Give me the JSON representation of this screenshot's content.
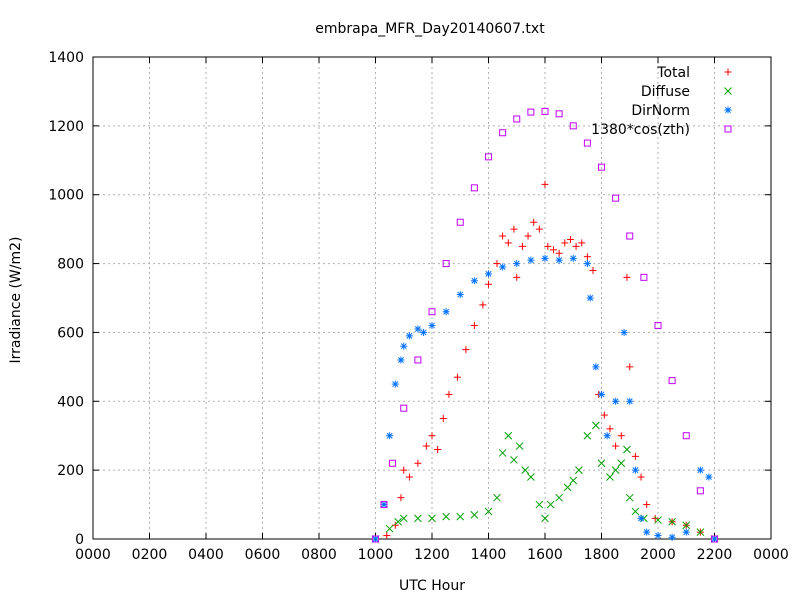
{
  "chart_data": {
    "type": "scatter",
    "title": "embrapa_MFR_Day20140607.txt",
    "xlabel": "UTC Hour",
    "ylabel": "Irradiance (W/m2)",
    "xlim": [
      0,
      2400
    ],
    "ylim": [
      0,
      1400
    ],
    "x_ticks": [
      "0000",
      "0200",
      "0400",
      "0600",
      "0800",
      "1000",
      "1200",
      "1400",
      "1600",
      "1800",
      "2000",
      "2200",
      "0000"
    ],
    "y_ticks": [
      "0",
      "200",
      "400",
      "600",
      "800",
      "1000",
      "1200",
      "1400"
    ],
    "grid": true,
    "legend_position": "top-right",
    "series": [
      {
        "name": "Total",
        "marker": "+",
        "color": "#ff0000",
        "points": [
          [
            1000,
            0
          ],
          [
            1040,
            10
          ],
          [
            1070,
            40
          ],
          [
            1090,
            120
          ],
          [
            1100,
            200
          ],
          [
            1120,
            180
          ],
          [
            1150,
            220
          ],
          [
            1180,
            270
          ],
          [
            1200,
            300
          ],
          [
            1220,
            260
          ],
          [
            1240,
            350
          ],
          [
            1260,
            420
          ],
          [
            1290,
            470
          ],
          [
            1320,
            550
          ],
          [
            1350,
            620
          ],
          [
            1380,
            680
          ],
          [
            1400,
            740
          ],
          [
            1430,
            800
          ],
          [
            1450,
            880
          ],
          [
            1470,
            860
          ],
          [
            1490,
            900
          ],
          [
            1500,
            760
          ],
          [
            1520,
            850
          ],
          [
            1540,
            880
          ],
          [
            1560,
            920
          ],
          [
            1580,
            900
          ],
          [
            1600,
            1030
          ],
          [
            1610,
            850
          ],
          [
            1630,
            840
          ],
          [
            1650,
            830
          ],
          [
            1670,
            860
          ],
          [
            1690,
            870
          ],
          [
            1710,
            850
          ],
          [
            1730,
            860
          ],
          [
            1750,
            820
          ],
          [
            1770,
            780
          ],
          [
            1790,
            420
          ],
          [
            1810,
            360
          ],
          [
            1830,
            320
          ],
          [
            1850,
            270
          ],
          [
            1870,
            300
          ],
          [
            1890,
            760
          ],
          [
            1900,
            500
          ],
          [
            1920,
            240
          ],
          [
            1940,
            180
          ],
          [
            1960,
            100
          ],
          [
            1990,
            60
          ],
          [
            2050,
            50
          ],
          [
            2100,
            40
          ],
          [
            2150,
            20
          ],
          [
            2200,
            0
          ]
        ]
      },
      {
        "name": "Diffuse",
        "marker": "x",
        "color": "#00a000",
        "points": [
          [
            1000,
            0
          ],
          [
            1050,
            30
          ],
          [
            1080,
            50
          ],
          [
            1100,
            60
          ],
          [
            1150,
            60
          ],
          [
            1200,
            60
          ],
          [
            1250,
            65
          ],
          [
            1300,
            65
          ],
          [
            1350,
            70
          ],
          [
            1400,
            80
          ],
          [
            1430,
            120
          ],
          [
            1450,
            250
          ],
          [
            1470,
            300
          ],
          [
            1490,
            230
          ],
          [
            1510,
            270
          ],
          [
            1530,
            200
          ],
          [
            1550,
            180
          ],
          [
            1580,
            100
          ],
          [
            1600,
            60
          ],
          [
            1620,
            100
          ],
          [
            1650,
            120
          ],
          [
            1680,
            150
          ],
          [
            1700,
            170
          ],
          [
            1720,
            200
          ],
          [
            1750,
            300
          ],
          [
            1780,
            330
          ],
          [
            1800,
            220
          ],
          [
            1830,
            180
          ],
          [
            1850,
            200
          ],
          [
            1870,
            220
          ],
          [
            1890,
            260
          ],
          [
            1900,
            120
          ],
          [
            1920,
            80
          ],
          [
            1950,
            60
          ],
          [
            2000,
            55
          ],
          [
            2050,
            50
          ],
          [
            2100,
            40
          ],
          [
            2150,
            20
          ],
          [
            2200,
            0
          ]
        ]
      },
      {
        "name": "DirNorm",
        "marker": "*",
        "color": "#0070ff",
        "points": [
          [
            1000,
            0
          ],
          [
            1030,
            100
          ],
          [
            1050,
            300
          ],
          [
            1070,
            450
          ],
          [
            1090,
            520
          ],
          [
            1100,
            560
          ],
          [
            1120,
            590
          ],
          [
            1150,
            610
          ],
          [
            1170,
            600
          ],
          [
            1200,
            620
          ],
          [
            1250,
            660
          ],
          [
            1300,
            710
          ],
          [
            1350,
            750
          ],
          [
            1400,
            770
          ],
          [
            1450,
            790
          ],
          [
            1500,
            800
          ],
          [
            1550,
            810
          ],
          [
            1600,
            815
          ],
          [
            1650,
            810
          ],
          [
            1700,
            815
          ],
          [
            1750,
            800
          ],
          [
            1760,
            700
          ],
          [
            1780,
            500
          ],
          [
            1800,
            420
          ],
          [
            1820,
            300
          ],
          [
            1850,
            400
          ],
          [
            1880,
            600
          ],
          [
            1900,
            400
          ],
          [
            1920,
            200
          ],
          [
            1940,
            60
          ],
          [
            1960,
            20
          ],
          [
            2000,
            10
          ],
          [
            2050,
            5
          ],
          [
            2100,
            20
          ],
          [
            2150,
            200
          ],
          [
            2180,
            180
          ],
          [
            2200,
            0
          ]
        ]
      },
      {
        "name": "1380*cos(zth)",
        "marker": "square",
        "color": "#c000ff",
        "points": [
          [
            1000,
            0
          ],
          [
            1030,
            100
          ],
          [
            1060,
            220
          ],
          [
            1100,
            380
          ],
          [
            1150,
            520
          ],
          [
            1200,
            660
          ],
          [
            1250,
            800
          ],
          [
            1300,
            920
          ],
          [
            1350,
            1020
          ],
          [
            1400,
            1110
          ],
          [
            1450,
            1180
          ],
          [
            1500,
            1220
          ],
          [
            1550,
            1240
          ],
          [
            1600,
            1242
          ],
          [
            1650,
            1235
          ],
          [
            1700,
            1200
          ],
          [
            1750,
            1150
          ],
          [
            1800,
            1080
          ],
          [
            1850,
            990
          ],
          [
            1900,
            880
          ],
          [
            1950,
            760
          ],
          [
            2000,
            620
          ],
          [
            2050,
            460
          ],
          [
            2100,
            300
          ],
          [
            2150,
            140
          ],
          [
            2200,
            0
          ]
        ]
      }
    ]
  }
}
